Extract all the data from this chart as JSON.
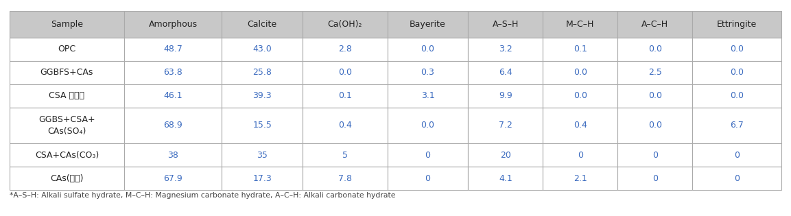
{
  "columns": [
    "Sample",
    "Amorphous",
    "Calcite",
    "Ca(OH)₂",
    "Bayerite",
    "A–S–H",
    "M–C–H",
    "A–C–H",
    "Ettringite"
  ],
  "rows": [
    [
      "OPC",
      "48.7",
      "43.0",
      "2.8",
      "0.0",
      "3.2",
      "0.1",
      "0.0",
      "0.0"
    ],
    [
      "GGBFS+CAs",
      "63.8",
      "25.8",
      "0.0",
      "0.3",
      "6.4",
      "0.0",
      "2.5",
      "0.0"
    ],
    [
      "CSA 팬창재",
      "46.1",
      "39.3",
      "0.1",
      "3.1",
      "9.9",
      "0.0",
      "0.0",
      "0.0"
    ],
    [
      "GGBS+CSA+\nCAs(SO₄)",
      "68.9",
      "15.5",
      "0.4",
      "0.0",
      "7.2",
      "0.4",
      "0.0",
      "6.7"
    ],
    [
      "CSA+CAs(CO₃)",
      "38",
      "35",
      "5",
      "0",
      "20",
      "0",
      "0",
      "0"
    ],
    [
      "CAs(기타)",
      "67.9",
      "17.3",
      "7.8",
      "0",
      "4.1",
      "2.1",
      "0",
      "0"
    ]
  ],
  "header_bg": "#c8c8c8",
  "data_bg": "#ffffff",
  "border_color": "#aaaaaa",
  "header_text_color": "#222222",
  "data_text_color": "#3a6abf",
  "sample_text_color": "#222222",
  "footer_text": "*A–S–H: Alkali sulfate hydrate, M–C–H: Magnesium carbonate hydrate, A–C–H: Alkali carbonate hydrate",
  "col_widths_rel": [
    1.35,
    1.15,
    0.95,
    1.0,
    0.95,
    0.88,
    0.88,
    0.88,
    1.05
  ],
  "figsize": [
    11.53,
    3.15
  ],
  "dpi": 100,
  "header_fontsize": 9.0,
  "data_fontsize": 9.0,
  "footer_fontsize": 7.8,
  "row_heights_rel": [
    1.15,
    1.0,
    1.0,
    1.0,
    1.55,
    1.0,
    1.0
  ]
}
